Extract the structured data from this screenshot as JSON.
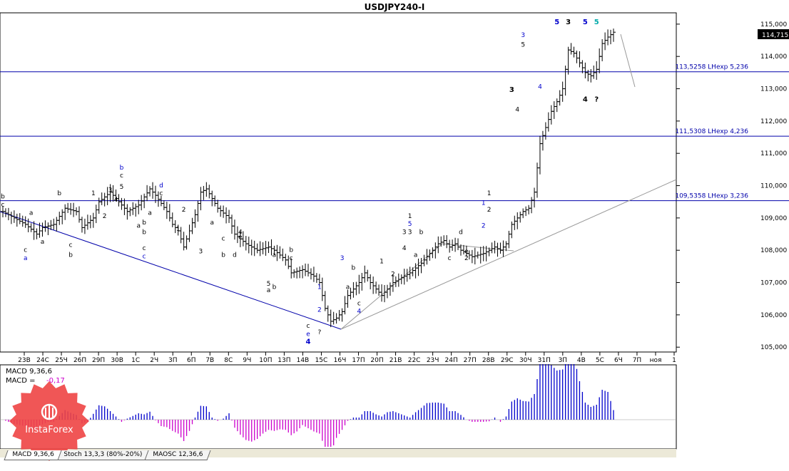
{
  "title": "USDJPY240-I",
  "current_price": "114,715",
  "colors": {
    "candle": "#000000",
    "level_line": "#0000aa",
    "trend_line": "#0000aa",
    "gray_line": "#999999",
    "wave_blue": "#0000cc",
    "wave_teal": "#00aaaa",
    "macd_pos": "#0000cc",
    "macd_neg": "#cc00cc",
    "logo_red": "#ee4444"
  },
  "indicator": {
    "line1": "MACD 9,36,6",
    "line2_label": "MACD = ",
    "line2_value": "-0,17"
  },
  "tabs": [
    "MACD 9,36,6",
    "Stoch 13,3,3 (80%-20%)",
    "MAOSC 12,36,6"
  ],
  "logo_text": "InstaForex",
  "chart_data": {
    "type": "candlestick",
    "title": "USDJPY240-I",
    "y_tick_labels": [
      "105,000",
      "106,000",
      "107,000",
      "108,000",
      "109,000",
      "110,000",
      "111,000",
      "112,000",
      "113,000",
      "114,000",
      "115,000"
    ],
    "ylim": [
      104.85,
      115.35
    ],
    "x_tick_labels": [
      "23В",
      "24С",
      "25Ч",
      "26П",
      "29П",
      "30В",
      "1С",
      "2Ч",
      "3П",
      "6П",
      "7В",
      "8С",
      "9Ч",
      "10П",
      "13П",
      "14В",
      "15С",
      "16Ч",
      "17П",
      "20П",
      "21В",
      "22С",
      "23Ч",
      "24П",
      "27П",
      "28В",
      "29С",
      "30Ч",
      "31П",
      "3П",
      "4В",
      "5С",
      "6Ч",
      "7П",
      "ноя",
      "1"
    ],
    "horizontal_levels": [
      {
        "value": 113.5258,
        "label": "113,5258 LHexp 5,236"
      },
      {
        "value": 111.5308,
        "label": "111,5308 LHexp 4,236"
      },
      {
        "value": 109.5358,
        "label": "109,5358 LHexp 3,236"
      }
    ],
    "price_path": [
      [
        0,
        109.2
      ],
      [
        2,
        109.0
      ],
      [
        4,
        108.8
      ],
      [
        6,
        108.5
      ],
      [
        7,
        108.7
      ],
      [
        9,
        108.8
      ],
      [
        11,
        109.3
      ],
      [
        13,
        109.2
      ],
      [
        14,
        108.7
      ],
      [
        16,
        109.0
      ],
      [
        17,
        109.5
      ],
      [
        19,
        109.8
      ],
      [
        20,
        109.6
      ],
      [
        22,
        109.2
      ],
      [
        24,
        109.4
      ],
      [
        26,
        109.9
      ],
      [
        27,
        109.7
      ],
      [
        29,
        109.2
      ],
      [
        30,
        108.8
      ],
      [
        31,
        108.6
      ],
      [
        32,
        108.1
      ],
      [
        33,
        108.6
      ],
      [
        34,
        109.1
      ],
      [
        35,
        109.8
      ],
      [
        36,
        109.9
      ],
      [
        37,
        109.6
      ],
      [
        38,
        109.3
      ],
      [
        40,
        109.0
      ],
      [
        41,
        108.5
      ],
      [
        43,
        108.2
      ],
      [
        45,
        108.0
      ],
      [
        47,
        108.1
      ],
      [
        48,
        108.0
      ],
      [
        50,
        107.7
      ],
      [
        51,
        107.3
      ],
      [
        53,
        107.4
      ],
      [
        55,
        107.2
      ],
      [
        56,
        107.0
      ],
      [
        57,
        106.2
      ],
      [
        58,
        105.8
      ],
      [
        59,
        105.9
      ],
      [
        60,
        106.1
      ],
      [
        61,
        106.6
      ],
      [
        63,
        107.0
      ],
      [
        64,
        107.3
      ],
      [
        65,
        107.0
      ],
      [
        66,
        106.8
      ],
      [
        67,
        106.6
      ],
      [
        68,
        106.8
      ],
      [
        69,
        107.0
      ],
      [
        71,
        107.2
      ],
      [
        72,
        107.3
      ],
      [
        74,
        107.6
      ],
      [
        76,
        108.0
      ],
      [
        77,
        108.2
      ],
      [
        78,
        108.3
      ],
      [
        79,
        108.1
      ],
      [
        80,
        108.2
      ],
      [
        81,
        108.0
      ],
      [
        82,
        107.9
      ],
      [
        83,
        107.8
      ],
      [
        85,
        107.9
      ],
      [
        87,
        108.1
      ],
      [
        88,
        108.0
      ],
      [
        89,
        108.2
      ],
      [
        90,
        108.8
      ],
      [
        91,
        109.0
      ],
      [
        92,
        109.2
      ],
      [
        93,
        109.3
      ],
      [
        94,
        109.8
      ],
      [
        95,
        111.3
      ],
      [
        96,
        111.8
      ],
      [
        97,
        112.3
      ],
      [
        98,
        112.6
      ],
      [
        99,
        113.0
      ],
      [
        100,
        114.2
      ],
      [
        101,
        114.1
      ],
      [
        102,
        113.8
      ],
      [
        103,
        113.5
      ],
      [
        104,
        113.4
      ],
      [
        105,
        113.6
      ],
      [
        106,
        114.4
      ],
      [
        107,
        114.6
      ],
      [
        108,
        114.75
      ]
    ],
    "wave_labels": [
      {
        "t": "b",
        "x": 0,
        "y": 109.6
      },
      {
        "t": "c",
        "x": 0,
        "y": 109.35
      },
      {
        "t": "a",
        "x": 5,
        "y": 109.1
      },
      {
        "t": "c",
        "x": 4,
        "y": 107.95
      },
      {
        "t": "a",
        "x": 4,
        "y": 107.7,
        "blue": true
      },
      {
        "t": "b",
        "x": 10,
        "y": 109.7
      },
      {
        "t": "c",
        "x": 12,
        "y": 108.1
      },
      {
        "t": "b",
        "x": 12,
        "y": 107.8
      },
      {
        "t": "a",
        "x": 7,
        "y": 108.2
      },
      {
        "t": "b",
        "x": 21,
        "y": 110.5,
        "blue": true
      },
      {
        "t": "c",
        "x": 21,
        "y": 110.25
      },
      {
        "t": "5",
        "x": 21,
        "y": 109.9
      },
      {
        "t": "3",
        "x": 19,
        "y": 109.8
      },
      {
        "t": "1",
        "x": 16,
        "y": 109.7
      },
      {
        "t": "4",
        "x": 20,
        "y": 109.5
      },
      {
        "t": "2",
        "x": 18,
        "y": 109.0
      },
      {
        "t": "d",
        "x": 28,
        "y": 109.95,
        "blue": true
      },
      {
        "t": "c",
        "x": 28,
        "y": 109.7
      },
      {
        "t": "a",
        "x": 26,
        "y": 109.1
      },
      {
        "t": "b",
        "x": 25,
        "y": 108.8
      },
      {
        "t": "a",
        "x": 24,
        "y": 108.7
      },
      {
        "t": "b",
        "x": 25,
        "y": 108.5
      },
      {
        "t": "c",
        "x": 25,
        "y": 108.0
      },
      {
        "t": "c",
        "x": 25,
        "y": 107.75,
        "blue": true
      },
      {
        "t": "2",
        "x": 32,
        "y": 109.2
      },
      {
        "t": "1",
        "x": 31,
        "y": 108.6
      },
      {
        "t": "3",
        "x": 35,
        "y": 107.9
      },
      {
        "t": "a",
        "x": 37,
        "y": 108.8
      },
      {
        "t": "c",
        "x": 39,
        "y": 108.3
      },
      {
        "t": "b",
        "x": 39,
        "y": 107.8
      },
      {
        "t": "4",
        "x": 42,
        "y": 108.5
      },
      {
        "t": "e",
        "x": 42,
        "y": 108.35
      },
      {
        "t": "d",
        "x": 41,
        "y": 107.8
      },
      {
        "t": "5",
        "x": 47,
        "y": 106.9
      },
      {
        "t": "a",
        "x": 47,
        "y": 106.7
      },
      {
        "t": "b",
        "x": 48,
        "y": 106.8
      },
      {
        "t": "a",
        "x": 48,
        "y": 107.8
      },
      {
        "t": "c",
        "x": 51,
        "y": 107.7
      },
      {
        "t": "b",
        "x": 51,
        "y": 107.95
      },
      {
        "t": "c",
        "x": 54,
        "y": 105.6
      },
      {
        "t": "e",
        "x": 54,
        "y": 105.35,
        "blue": true
      },
      {
        "t": "4",
        "x": 54,
        "y": 105.1,
        "blue": true
      },
      {
        "t": "?",
        "x": 56,
        "y": 105.4
      },
      {
        "t": "1",
        "x": 56,
        "y": 106.8,
        "blue": true
      },
      {
        "t": "2",
        "x": 56,
        "y": 106.1,
        "blue": true
      },
      {
        "t": "3",
        "x": 60,
        "y": 107.7,
        "blue": true
      },
      {
        "t": "a",
        "x": 61,
        "y": 106.8
      },
      {
        "t": "b",
        "x": 62,
        "y": 107.4
      },
      {
        "t": "c",
        "x": 63,
        "y": 106.3
      },
      {
        "t": "4",
        "x": 63,
        "y": 106.05,
        "blue": true
      },
      {
        "t": "1",
        "x": 67,
        "y": 107.6
      },
      {
        "t": "2",
        "x": 69,
        "y": 107.2
      },
      {
        "t": "3",
        "x": 71,
        "y": 108.5
      },
      {
        "t": "1",
        "x": 72,
        "y": 109.0
      },
      {
        "t": "5",
        "x": 72,
        "y": 108.75,
        "blue": true
      },
      {
        "t": "3",
        "x": 72,
        "y": 108.5
      },
      {
        "t": "4",
        "x": 71,
        "y": 108.0
      },
      {
        "t": "b",
        "x": 74,
        "y": 108.5
      },
      {
        "t": "a",
        "x": 73,
        "y": 107.8
      },
      {
        "t": "c",
        "x": 79,
        "y": 107.7
      },
      {
        "t": "d",
        "x": 81,
        "y": 108.5
      },
      {
        "t": "e",
        "x": 82,
        "y": 107.9
      },
      {
        "t": "2",
        "x": 82,
        "y": 107.7
      },
      {
        "t": "1",
        "x": 85,
        "y": 109.4,
        "blue": true
      },
      {
        "t": "1",
        "x": 86,
        "y": 109.7
      },
      {
        "t": "2",
        "x": 86,
        "y": 109.2
      },
      {
        "t": "2",
        "x": 85,
        "y": 108.7,
        "blue": true
      },
      {
        "t": "3",
        "x": 90,
        "y": 112.9
      },
      {
        "t": "4",
        "x": 91,
        "y": 112.3
      },
      {
        "t": "3",
        "x": 92,
        "y": 114.6,
        "blue": true
      },
      {
        "t": "5",
        "x": 92,
        "y": 114.3
      },
      {
        "t": "4",
        "x": 95,
        "y": 113.0,
        "blue": true
      },
      {
        "t": "5",
        "x": 98,
        "y": 115.0,
        "blue": true
      },
      {
        "t": "3",
        "x": 100,
        "y": 115.0
      },
      {
        "t": "5",
        "x": 103,
        "y": 115.0,
        "blue": true
      },
      {
        "t": "5",
        "x": 105,
        "y": 115.0,
        "teal": true
      },
      {
        "t": "4",
        "x": 103,
        "y": 112.6
      },
      {
        "t": "?",
        "x": 105,
        "y": 112.6
      }
    ]
  }
}
